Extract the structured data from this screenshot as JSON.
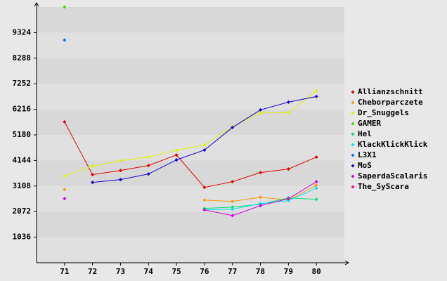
{
  "chart_data": {
    "type": "line",
    "categories": [
      "71",
      "72",
      "73",
      "74",
      "75",
      "76",
      "77",
      "78",
      "79",
      "80"
    ],
    "ylim": [
      0,
      10360
    ],
    "yticks": [
      1036,
      2072,
      3108,
      4144,
      5180,
      6216,
      7252,
      8288,
      9324
    ],
    "grid": true,
    "legend": "right",
    "series": [
      {
        "name": "Allianzschnitt",
        "color": "#e00000",
        "values": [
          5708,
          3568,
          3739,
          3939,
          4367,
          3054,
          3282,
          3653,
          3796,
          4281
        ]
      },
      {
        "name": "Cheborparczete",
        "color": "#ff9900",
        "values": [
          2968,
          null,
          null,
          null,
          null,
          2540,
          2483,
          2654,
          2540,
          3139
        ]
      },
      {
        "name": "Dr_Snuggels",
        "color": "#e0f000",
        "values": [
          3510,
          3910,
          4138,
          4281,
          4566,
          4766,
          5508,
          6079,
          6079,
          6964
        ]
      },
      {
        "name": "GAMER",
        "color": "#40e000",
        "values": [
          10360,
          null,
          null,
          null,
          null,
          null,
          null,
          null,
          null,
          null
        ]
      },
      {
        "name": "Hel",
        "color": "#00e070",
        "values": [
          null,
          null,
          null,
          null,
          null,
          2198,
          2255,
          2369,
          2626,
          2569
        ]
      },
      {
        "name": "KlackKlickKlick",
        "color": "#00e0f0",
        "values": [
          null,
          null,
          null,
          null,
          null,
          2141,
          2169,
          2397,
          2512,
          3025
        ]
      },
      {
        "name": "L3X1",
        "color": "#0070ff",
        "values": [
          9019,
          null,
          null,
          null,
          null,
          null,
          null,
          null,
          null,
          null
        ]
      },
      {
        "name": "MoS",
        "color": "#1000d0",
        "values": [
          null,
          3254,
          3368,
          3596,
          4167,
          4566,
          5480,
          6193,
          6507,
          6735
        ]
      },
      {
        "name": "SaperdaScalaris",
        "color": "#d000e0",
        "values": [
          2597,
          null,
          null,
          null,
          null,
          2141,
          1912,
          2312,
          2597,
          3282
        ]
      },
      {
        "name": "The_SyScara",
        "color": "#ff0090",
        "values": [
          null,
          null,
          null,
          null,
          null,
          null,
          null,
          null,
          null,
          null
        ]
      }
    ]
  }
}
